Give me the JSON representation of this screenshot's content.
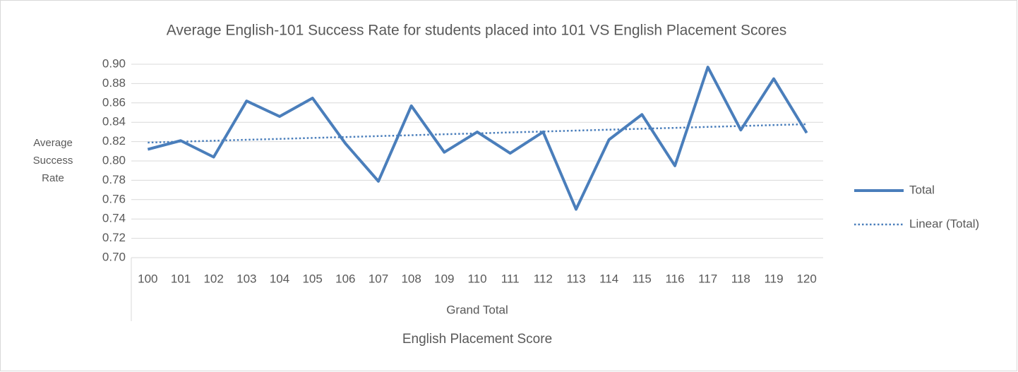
{
  "chart_data": {
    "type": "line",
    "title": "Average English-101 Success Rate for students placed into 101 VS English Placement Scores",
    "x_label": "English Placement Score",
    "x_group_label": "Grand Total",
    "y_label": "Average Success Rate",
    "categories": [
      "100",
      "101",
      "102",
      "103",
      "104",
      "105",
      "106",
      "107",
      "108",
      "109",
      "110",
      "111",
      "112",
      "113",
      "114",
      "115",
      "116",
      "117",
      "118",
      "119",
      "120"
    ],
    "series": [
      {
        "name": "Total",
        "color": "#4a7ebb",
        "style": "solid",
        "values": [
          0.812,
          0.821,
          0.804,
          0.862,
          0.846,
          0.865,
          0.818,
          0.779,
          0.857,
          0.809,
          0.83,
          0.808,
          0.83,
          0.75,
          0.822,
          0.848,
          0.795,
          0.897,
          0.832,
          0.885,
          0.829
        ]
      },
      {
        "name": "Linear (Total)",
        "color": "#4a7ebb",
        "style": "dotted",
        "values": [
          0.819,
          0.82,
          0.8209,
          0.8219,
          0.8228,
          0.8238,
          0.8247,
          0.8257,
          0.8266,
          0.8276,
          0.8285,
          0.8295,
          0.8304,
          0.8314,
          0.8323,
          0.8333,
          0.8342,
          0.8352,
          0.8361,
          0.8371,
          0.838
        ]
      }
    ],
    "ylim": [
      0.7,
      0.9
    ],
    "yticks": [
      {
        "value": 0.7,
        "label": "0.70"
      },
      {
        "value": 0.72,
        "label": "0.72"
      },
      {
        "value": 0.74,
        "label": "0.74"
      },
      {
        "value": 0.76,
        "label": "0.76"
      },
      {
        "value": 0.78,
        "label": "0.78"
      },
      {
        "value": 0.8,
        "label": "0.80"
      },
      {
        "value": 0.82,
        "label": "0.82"
      },
      {
        "value": 0.84,
        "label": "0.84"
      },
      {
        "value": 0.86,
        "label": "0.86"
      },
      {
        "value": 0.88,
        "label": "0.88"
      },
      {
        "value": 0.9,
        "label": "0.90"
      }
    ],
    "grid": true,
    "legend": "right"
  }
}
